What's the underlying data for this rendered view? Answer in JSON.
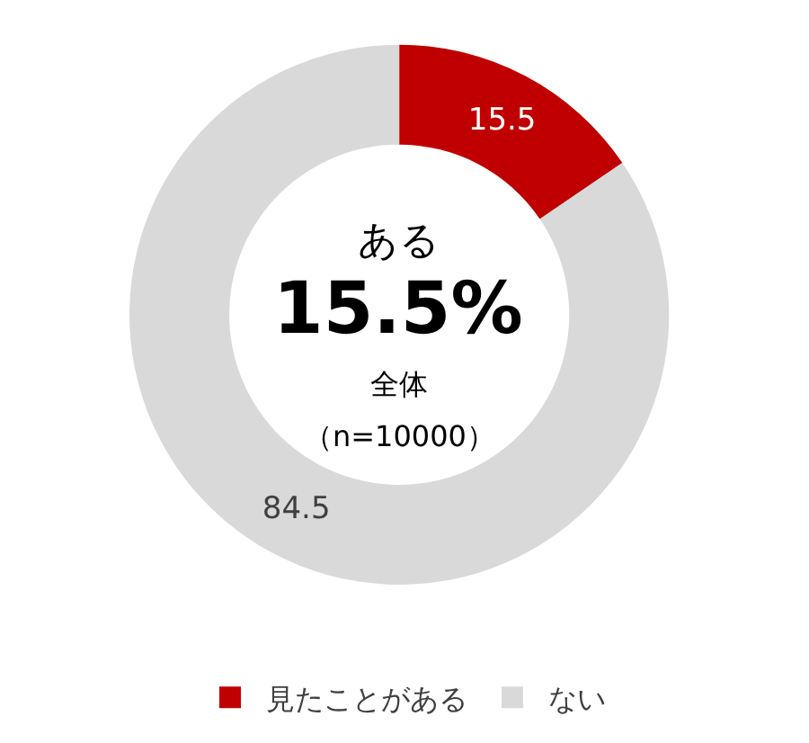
{
  "chart_data": {
    "type": "donut",
    "categories": [
      "見たことがある",
      "ない"
    ],
    "values": [
      15.5,
      84.5
    ],
    "colors": [
      "#c00000",
      "#d9d9d9"
    ],
    "data_labels": true,
    "legend": "bottom",
    "annotations": [
      "ある",
      "15.5%",
      "全体",
      "（n=10000）"
    ]
  }
}
